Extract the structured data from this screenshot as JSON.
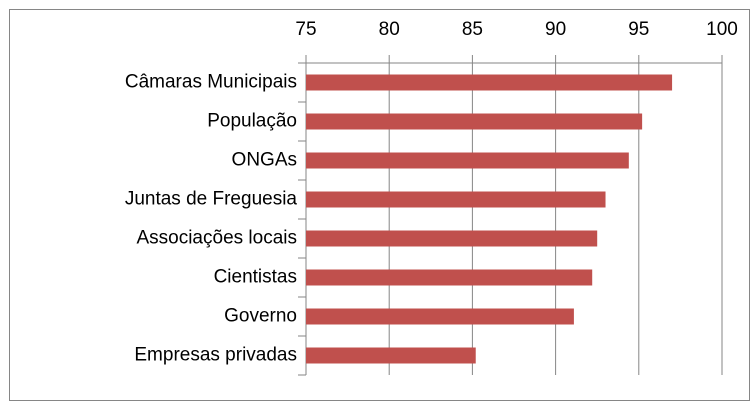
{
  "chart_data": {
    "type": "bar",
    "orientation": "horizontal",
    "categories": [
      "Câmaras Municipais",
      "População",
      "ONGAs",
      "Juntas de Freguesia",
      "Associações locais",
      "Cientistas",
      "Governo",
      "Empresas privadas"
    ],
    "values": [
      97.0,
      95.2,
      94.4,
      93.0,
      92.5,
      92.2,
      91.1,
      85.2
    ],
    "color": "#c0504d",
    "xlim": [
      75,
      100
    ],
    "xticks": [
      75,
      80,
      85,
      90,
      95,
      100
    ],
    "grid": true,
    "x_axis_position": "top"
  }
}
